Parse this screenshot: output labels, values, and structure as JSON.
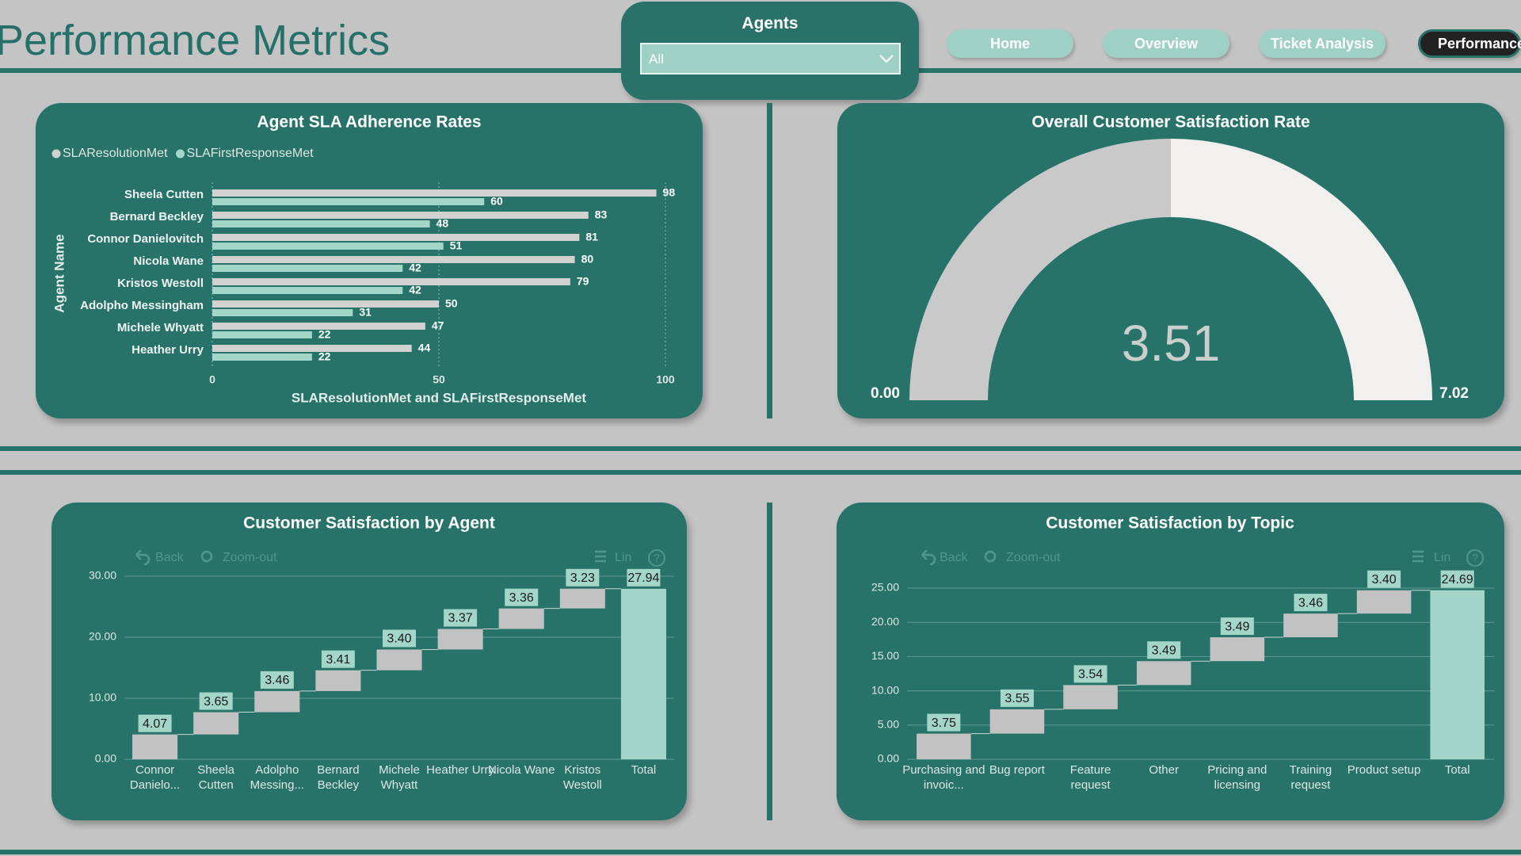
{
  "header": {
    "title": "Performance Metrics"
  },
  "filter": {
    "label": "Agents",
    "value": "All"
  },
  "nav": [
    {
      "label": "Home",
      "active": false
    },
    {
      "label": "Overview",
      "active": false
    },
    {
      "label": "Ticket Analysis",
      "active": false
    },
    {
      "label": "Performance",
      "active": true
    }
  ],
  "chart_data": [
    {
      "type": "bar",
      "orientation": "horizontal",
      "title": "Agent SLA Adherence Rates",
      "categories": [
        "Sheela Cutten",
        "Bernard Beckley",
        "Connor Danielovitch",
        "Nicola Wane",
        "Kristos Westoll",
        "Adolpho Messingham",
        "Michele Whyatt",
        "Heather Urry"
      ],
      "series": [
        {
          "name": "SLAResolutionMet",
          "color": "#d2d2d2",
          "values": [
            98,
            83,
            81,
            80,
            79,
            50,
            47,
            44
          ]
        },
        {
          "name": "SLAFirstResponseMet",
          "color": "#a3d6c8",
          "values": [
            60,
            48,
            51,
            42,
            42,
            31,
            22,
            22
          ]
        }
      ],
      "xlim": [
        0,
        100
      ],
      "xticks": [
        0,
        50,
        100
      ],
      "xlabel": "SLAResolutionMet and SLAFirstResponseMet",
      "ylabel": "Agent Name",
      "legend": "top-left",
      "grid": true
    },
    {
      "type": "gauge",
      "title": "Overall Customer Satisfaction Rate",
      "value": 3.51,
      "range": [
        {
          "value": 0,
          "label": "0.00"
        },
        7.02
      ],
      "color": "#c9c9c9",
      "track_color": "#f2f0ee"
    },
    {
      "type": "waterfall",
      "title": "Customer Satisfaction by Agent",
      "toolbar": {
        "back": "Back",
        "zoom": "Zoom-out",
        "scale": "Lin",
        "help": "?"
      },
      "categories": [
        "Connor Danielo...",
        "Sheela Cutten",
        "Adolpho Messing...",
        "Bernard Beckley",
        "Michele Whyatt",
        "Heather Urry",
        "Nicola Wane",
        "Kristos Westoll"
      ],
      "values": [
        4.07,
        3.65,
        3.46,
        3.41,
        3.4,
        3.37,
        3.36,
        3.23
      ],
      "value_labels": [
        "4.07",
        "3.65",
        "3.46",
        "3.41",
        "3.40",
        "3.37",
        "3.36",
        "3.23"
      ],
      "total": {
        "label": "Total",
        "value": 27.94
      },
      "color": "#c2c2c2",
      "total_color": "#a3d6c8",
      "ylim": [
        0,
        30
      ],
      "yticks": [
        {
          "value": 0,
          "label": "0.00"
        },
        {
          "value": 10,
          "label": "10.00"
        },
        {
          "value": 20,
          "label": "20.00"
        },
        {
          "value": 30,
          "label": "30.00"
        }
      ],
      "grid": true
    },
    {
      "type": "waterfall",
      "title": "Customer Satisfaction by Topic",
      "toolbar": {
        "back": "Back",
        "zoom": "Zoom-out",
        "scale": "Lin",
        "help": "?"
      },
      "categories": [
        "Purchasing and invoic...",
        "Bug report",
        "Feature request",
        "Other",
        "Pricing and licensing",
        "Training request",
        "Product setup"
      ],
      "values": [
        3.75,
        3.55,
        3.54,
        3.49,
        3.49,
        3.46,
        3.4
      ],
      "value_labels": [
        "3.75",
        "3.55",
        "3.54",
        "3.49",
        "3.49",
        "3.46",
        "3.40"
      ],
      "total": {
        "label": "Total",
        "value": 24.69
      },
      "color": "#c2c2c2",
      "total_color": "#a3d6c8",
      "ylim": [
        0,
        25
      ],
      "yticks": [
        {
          "value": 0,
          "label": "0.00"
        },
        {
          "value": 5,
          "label": "5.00"
        },
        {
          "value": 10,
          "label": "10.00"
        },
        {
          "value": 15,
          "label": "15.00"
        },
        {
          "value": 20,
          "label": "20.00"
        },
        {
          "value": 25,
          "label": "25.00"
        }
      ],
      "grid": true
    }
  ]
}
